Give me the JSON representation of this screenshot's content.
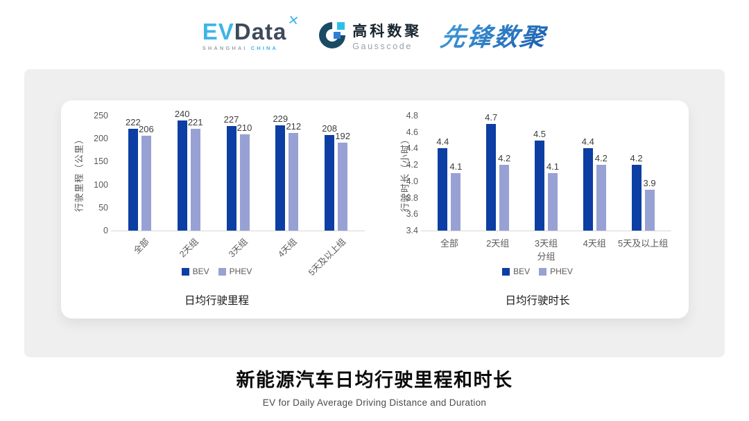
{
  "header": {
    "evdata_logo": {
      "ev": "EV",
      "data": "Data",
      "star": "✕",
      "sub_shanghai": "SHANGHAI",
      "sub_china": "CHINA"
    },
    "gausscode_logo": {
      "name_cn": "高科数聚",
      "name_en": "Gausscode"
    },
    "pioneer_logo": {
      "text": "先锋数聚"
    }
  },
  "colors": {
    "bev": "#0C3EA3",
    "phev": "#98A1D4",
    "panel_bg": "#EFEFEF",
    "axis_text": "#595959",
    "value_text": "#3C3C3C",
    "axis_line": "#D6D6D6",
    "evdata_cyan": "#3DB5E8",
    "evdata_dark": "#3D4A5A",
    "evdata_gray": "#9AA5AE",
    "gausscode_dark": "#1B4A63",
    "gausscode_cyan": "#2BC0EA",
    "gausscode_blue": "#2F7ED8",
    "gausscode_text": "#16242E",
    "gausscode_gray": "#98A0A6",
    "pioneer_blue_1": "#43A0DE",
    "pioneer_blue_2": "#1A5CAC"
  },
  "chart_data": [
    {
      "type": "bar",
      "title": "日均行驶里程",
      "ylabel": "行驶里程（公里）",
      "xlabel": "",
      "categories": [
        "全部",
        "2天组",
        "3天组",
        "4天组",
        "5天及以上组"
      ],
      "series": [
        {
          "name": "BEV",
          "values": [
            222,
            240,
            227,
            229,
            208
          ]
        },
        {
          "name": "PHEV",
          "values": [
            206,
            221,
            210,
            212,
            192
          ]
        }
      ],
      "ylim": [
        0,
        250
      ],
      "yticks": [
        0,
        50,
        100,
        150,
        200,
        250
      ],
      "ytick_format": "int",
      "x_label_rotation": -45,
      "grid": false,
      "legend_position": "bottom"
    },
    {
      "type": "bar",
      "title": "日均行驶时长",
      "ylabel": "行驶时长（小时）",
      "xlabel": "分组",
      "categories": [
        "全部",
        "2天组",
        "3天组",
        "4天组",
        "5天及以上组"
      ],
      "series": [
        {
          "name": "BEV",
          "values": [
            4.4,
            4.7,
            4.5,
            4.4,
            4.2
          ]
        },
        {
          "name": "PHEV",
          "values": [
            4.1,
            4.2,
            4.1,
            4.2,
            3.9
          ]
        }
      ],
      "ylim": [
        3.4,
        4.8
      ],
      "yticks": [
        3.4,
        3.6,
        3.8,
        4.0,
        4.2,
        4.4,
        4.6,
        4.8
      ],
      "ytick_format": "1dp",
      "x_label_rotation": 0,
      "grid": false,
      "legend_position": "bottom"
    }
  ],
  "footer": {
    "title": "新能源汽车日均行驶里程和时长",
    "subtitle": "EV for Daily Average Driving Distance and Duration"
  }
}
